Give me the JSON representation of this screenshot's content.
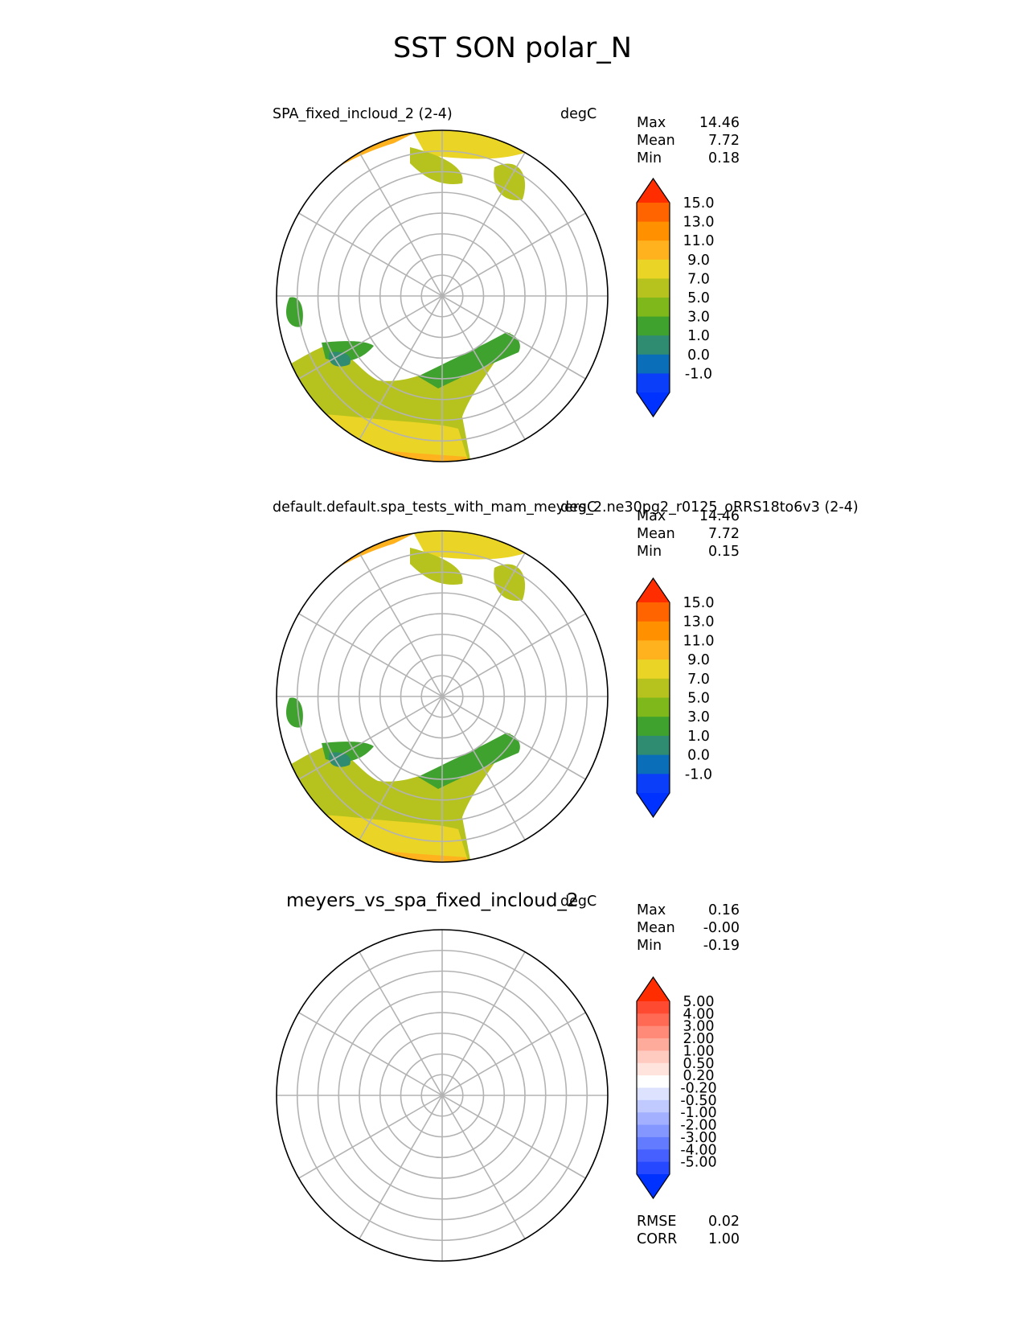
{
  "title": "SST SON polar_N",
  "panels": [
    {
      "left_label": "SPA_fixed_incloud_2 (2-4)",
      "right_label": "degC",
      "stats": [
        {
          "name": "Max",
          "value": "14.46"
        },
        {
          "name": "Mean",
          "value": "7.72"
        },
        {
          "name": "Min",
          "value": "0.18"
        }
      ],
      "colorbar": {
        "ticks": [
          "15.0",
          "13.0",
          "11.0",
          "9.0",
          "7.0",
          "5.0",
          "3.0",
          "1.0",
          "0.0",
          "-1.0"
        ],
        "colors": [
          "#ff2d00",
          "#ff6400",
          "#ff9000",
          "#ffb21e",
          "#ead426",
          "#b6c31e",
          "#7fb81b",
          "#3fa22e",
          "#2f8c70",
          "#0a6eb8",
          "#0a3ef8",
          "#0032ff"
        ]
      }
    },
    {
      "left_label": "default.default.spa_tests_with_mam_meyers_2.ne30pg2_r0125_oRRS18to6v3 (2-4)",
      "right_label": "degC",
      "stats": [
        {
          "name": "Max",
          "value": "14.46"
        },
        {
          "name": "Mean",
          "value": "7.72"
        },
        {
          "name": "Min",
          "value": "0.15"
        }
      ],
      "colorbar": {
        "ticks": [
          "15.0",
          "13.0",
          "11.0",
          "9.0",
          "7.0",
          "5.0",
          "3.0",
          "1.0",
          "0.0",
          "-1.0"
        ],
        "colors": [
          "#ff2d00",
          "#ff6400",
          "#ff9000",
          "#ffb21e",
          "#ead426",
          "#b6c31e",
          "#7fb81b",
          "#3fa22e",
          "#2f8c70",
          "#0a6eb8",
          "#0a3ef8",
          "#0032ff"
        ]
      }
    },
    {
      "left_label": "meyers_vs_spa_fixed_incloud_2",
      "right_label": "degC",
      "stats": [
        {
          "name": "Max",
          "value": "0.16"
        },
        {
          "name": "Mean",
          "value": "-0.00"
        },
        {
          "name": "Min",
          "value": "-0.19"
        }
      ],
      "colorbar": {
        "ticks": [
          "5.00",
          "4.00",
          "3.00",
          "2.00",
          "1.00",
          "0.50",
          "0.20",
          "-0.20",
          "-0.50",
          "-1.00",
          "-2.00",
          "-3.00",
          "-4.00",
          "-5.00"
        ],
        "colors": [
          "#ff2d00",
          "#ff4a32",
          "#ff6a54",
          "#ff8a78",
          "#ffab9c",
          "#ffcac0",
          "#ffe4de",
          "#ffffff",
          "#dde3ff",
          "#c0caff",
          "#a2b0ff",
          "#8496ff",
          "#637cff",
          "#4560ff",
          "#2648ff",
          "#0032ff"
        ]
      },
      "metrics": [
        {
          "name": "RMSE",
          "value": "0.02"
        },
        {
          "name": "CORR",
          "value": "1.00"
        }
      ]
    }
  ],
  "chart_data": [
    {
      "type": "heatmap",
      "projection": "north-polar-stereographic",
      "title": "SPA_fixed_incloud_2 (2-4)",
      "units": "degC",
      "variable": "SST",
      "season": "SON",
      "max": 14.46,
      "mean": 7.72,
      "min": 0.18,
      "levels": [
        -1.0,
        0.0,
        1.0,
        3.0,
        5.0,
        7.0,
        9.0,
        11.0,
        13.0,
        15.0
      ]
    },
    {
      "type": "heatmap",
      "projection": "north-polar-stereographic",
      "title": "default.default.spa_tests_with_mam_meyers_2.ne30pg2_r0125_oRRS18to6v3 (2-4)",
      "units": "degC",
      "variable": "SST",
      "season": "SON",
      "max": 14.46,
      "mean": 7.72,
      "min": 0.15,
      "levels": [
        -1.0,
        0.0,
        1.0,
        3.0,
        5.0,
        7.0,
        9.0,
        11.0,
        13.0,
        15.0
      ]
    },
    {
      "type": "heatmap",
      "projection": "north-polar-stereographic",
      "title": "meyers_vs_spa_fixed_incloud_2",
      "units": "degC",
      "max": 0.16,
      "mean": -0.0,
      "min": -0.19,
      "rmse": 0.02,
      "corr": 1.0,
      "levels": [
        -5.0,
        -4.0,
        -3.0,
        -2.0,
        -1.0,
        -0.5,
        -0.2,
        0.2,
        0.5,
        1.0,
        2.0,
        3.0,
        4.0,
        5.0
      ]
    }
  ]
}
